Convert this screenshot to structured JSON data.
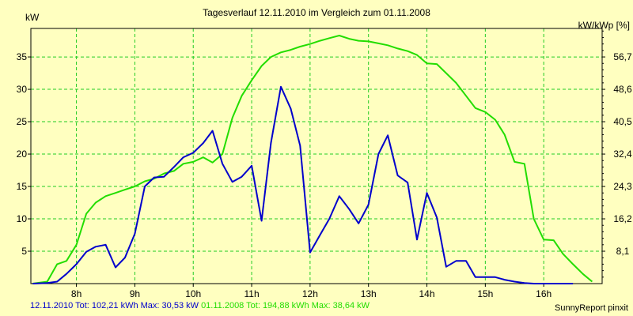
{
  "chart_data": {
    "type": "line",
    "title": "Tagesverlauf 12.11.2010 im Vergleich zum 01.11.2008",
    "ylabel_left": "kW",
    "ylabel_right": "kW/kWp [%]",
    "x_unit": "hour",
    "xlim": [
      7.22,
      17.0
    ],
    "x_ticks": [
      8,
      9,
      10,
      11,
      12,
      13,
      14,
      15,
      16
    ],
    "x_tick_labels": [
      "8h",
      "9h",
      "10h",
      "11h",
      "12h",
      "13h",
      "14h",
      "15h",
      "16h"
    ],
    "ylim": [
      0,
      39.4
    ],
    "y_ticks": [
      5,
      10,
      15,
      20,
      25,
      30,
      35
    ],
    "y_tick_labels": [
      "5",
      "10",
      "15",
      "20",
      "25",
      "30",
      "35"
    ],
    "y2_tick_labels": [
      "8,1",
      "16,2",
      "24,3",
      "32,4",
      "40,5",
      "48,6",
      "56,7"
    ],
    "grid": true,
    "series": [
      {
        "name": "12.11.2010",
        "color": "#0000cc",
        "x": [
          7.25,
          7.5,
          7.67,
          7.83,
          8.0,
          8.17,
          8.33,
          8.5,
          8.67,
          8.83,
          9.0,
          9.17,
          9.33,
          9.5,
          9.67,
          9.83,
          10.0,
          10.17,
          10.33,
          10.5,
          10.67,
          10.83,
          11.0,
          11.17,
          11.33,
          11.5,
          11.67,
          11.83,
          12.0,
          12.17,
          12.33,
          12.5,
          12.67,
          12.83,
          13.0,
          13.17,
          13.33,
          13.5,
          13.67,
          13.83,
          14.0,
          14.17,
          14.33,
          14.5,
          14.67,
          14.83,
          15.0,
          15.17,
          15.33,
          15.5,
          15.67,
          15.83,
          16.0,
          16.17,
          16.33,
          16.5
        ],
        "values": [
          0,
          0.1,
          0.3,
          1.5,
          3.0,
          4.9,
          5.7,
          6.0,
          2.5,
          4.0,
          7.7,
          15.0,
          16.4,
          16.5,
          18.0,
          19.5,
          20.2,
          21.7,
          23.6,
          18.5,
          15.7,
          16.5,
          18.2,
          9.7,
          21.7,
          30.4,
          27.0,
          21.3,
          4.8,
          7.5,
          10.0,
          13.5,
          11.5,
          9.3,
          12.2,
          20.0,
          22.9,
          16.7,
          15.6,
          6.8,
          14.0,
          10.2,
          2.6,
          3.5,
          3.5,
          1.0,
          1.0,
          1.0,
          0.6,
          0.3,
          0.1,
          0,
          0,
          0,
          0,
          0
        ]
      },
      {
        "name": "01.11.2008",
        "color": "#22dd00",
        "x": [
          7.25,
          7.5,
          7.67,
          7.83,
          8.0,
          8.17,
          8.33,
          8.5,
          8.67,
          8.83,
          9.0,
          9.17,
          9.33,
          9.5,
          9.67,
          9.83,
          10.0,
          10.17,
          10.33,
          10.5,
          10.67,
          10.83,
          11.0,
          11.17,
          11.33,
          11.5,
          11.67,
          11.83,
          12.0,
          12.17,
          12.33,
          12.5,
          12.67,
          12.83,
          13.0,
          13.17,
          13.33,
          13.5,
          13.67,
          13.83,
          14.0,
          14.17,
          14.33,
          14.5,
          14.67,
          14.83,
          15.0,
          15.17,
          15.33,
          15.5,
          15.67,
          15.83,
          16.0,
          16.17,
          16.33,
          16.5,
          16.67,
          16.83
        ],
        "values": [
          0,
          0.3,
          3.0,
          3.5,
          6.0,
          10.8,
          12.5,
          13.5,
          14.0,
          14.5,
          15.0,
          15.8,
          16.2,
          17.0,
          17.4,
          18.5,
          18.8,
          19.5,
          18.7,
          20.0,
          25.6,
          29.0,
          31.4,
          33.6,
          35.0,
          35.7,
          36.1,
          36.6,
          37.0,
          37.5,
          37.9,
          38.3,
          37.8,
          37.5,
          37.4,
          37.1,
          36.8,
          36.3,
          35.9,
          35.3,
          34.0,
          33.9,
          32.5,
          31.0,
          29.0,
          27.1,
          26.5,
          25.3,
          23.0,
          18.8,
          18.5,
          10.0,
          6.8,
          6.7,
          4.6,
          3.0,
          1.5,
          0.3
        ]
      }
    ]
  },
  "footer": {
    "series1_text": "12.11.2010 Tot: 102,21 kWh Max: 30,53 kW",
    "series1_color": "#0000cc",
    "series2_text": "01.11.2008 Tot: 194,88 kWh Max: 38,64 kW",
    "series2_color": "#22dd00",
    "brand": "SunnyReport pinxit"
  }
}
